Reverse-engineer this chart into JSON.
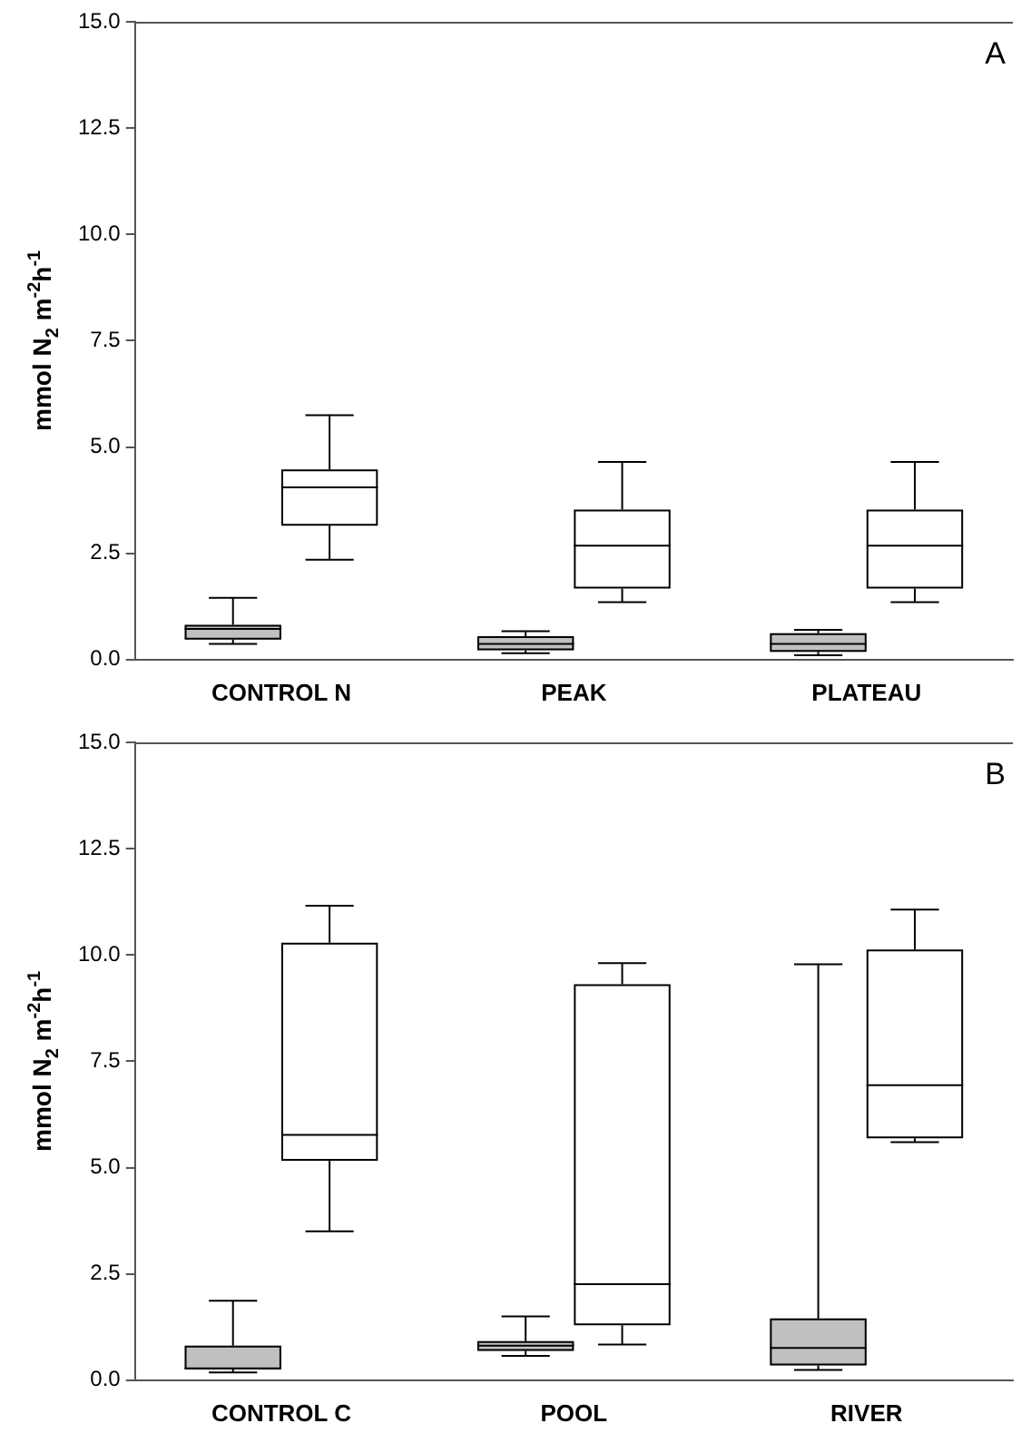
{
  "chart_data": [
    {
      "type": "box",
      "categories": [
        "CONTROL N",
        "PEAK",
        "PLATEAU"
      ],
      "ylabel": "mmol N$_{2}$ m$^{-2}$h$^{-1}$",
      "ylim": [
        0,
        15
      ],
      "yticks": [
        {
          "value": 0,
          "label": "0.0"
        },
        {
          "value": 2.5,
          "label": "2.5"
        },
        {
          "value": 5,
          "label": "5.0"
        },
        {
          "value": 7.5,
          "label": "7.5"
        },
        {
          "value": 10,
          "label": "10.0"
        },
        {
          "value": 12.5,
          "label": "12.5"
        },
        {
          "value": 15,
          "label": "15.0"
        }
      ],
      "annotations": [
        "A"
      ],
      "series": [
        {
          "color": "#c0c0c0",
          "boxes": [
            {
              "low": 0.37,
              "q1": 0.47,
              "median": 0.72,
              "q3": 0.82,
              "high": 1.45
            },
            {
              "low": 0.15,
              "q1": 0.22,
              "median": 0.37,
              "q3": 0.55,
              "high": 0.67
            },
            {
              "low": 0.1,
              "q1": 0.18,
              "median": 0.37,
              "q3": 0.62,
              "high": 0.7
            }
          ]
        },
        {
          "color": "#ffffff",
          "boxes": [
            {
              "low": 2.35,
              "q1": 3.15,
              "median": 4.05,
              "q3": 4.47,
              "high": 5.75
            },
            {
              "low": 1.35,
              "q1": 1.67,
              "median": 2.68,
              "q3": 3.53,
              "high": 4.65
            },
            {
              "low": 1.35,
              "q1": 1.67,
              "median": 2.68,
              "q3": 3.53,
              "high": 4.65
            }
          ]
        }
      ]
    },
    {
      "type": "box",
      "categories": [
        "CONTROL C",
        "POOL",
        "RIVER"
      ],
      "ylabel": "mmol N$_{2}$ m$^{-2}$h$^{-1}$",
      "ylim": [
        0,
        15
      ],
      "yticks": [
        {
          "value": 0,
          "label": "0.0"
        },
        {
          "value": 2.5,
          "label": "2.5"
        },
        {
          "value": 5,
          "label": "5.0"
        },
        {
          "value": 7.5,
          "label": "7.5"
        },
        {
          "value": 10,
          "label": "10.0"
        },
        {
          "value": 12.5,
          "label": "12.5"
        },
        {
          "value": 15,
          "label": "15.0"
        }
      ],
      "annotations": [
        "B"
      ],
      "series": [
        {
          "color": "#c0c0c0",
          "boxes": [
            {
              "low": 0.18,
              "q1": 0.25,
              "median": 0.28,
              "q3": 0.81,
              "high": 1.87
            },
            {
              "low": 0.57,
              "q1": 0.69,
              "median": 0.81,
              "q3": 0.92,
              "high": 1.5
            },
            {
              "low": 0.24,
              "q1": 0.35,
              "median": 0.76,
              "q3": 1.45,
              "high": 9.78
            }
          ]
        },
        {
          "color": "#ffffff",
          "boxes": [
            {
              "low": 3.5,
              "q1": 5.16,
              "median": 5.77,
              "q3": 10.29,
              "high": 11.16
            },
            {
              "low": 0.84,
              "q1": 1.29,
              "median": 2.26,
              "q3": 9.31,
              "high": 9.81
            },
            {
              "low": 5.6,
              "q1": 5.69,
              "median": 6.94,
              "q3": 10.13,
              "high": 11.07
            }
          ]
        }
      ]
    }
  ]
}
